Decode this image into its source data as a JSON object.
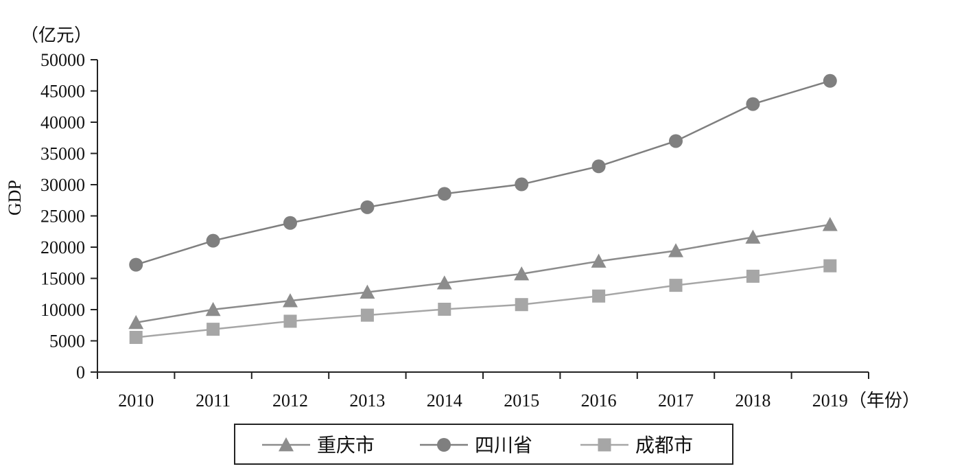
{
  "chart_data": {
    "type": "line",
    "title": "",
    "xlabel": "（年份）",
    "ylabel": "GDP",
    "yunit": "（亿元）",
    "categories": [
      "2010",
      "2011",
      "2012",
      "2013",
      "2014",
      "2015",
      "2016",
      "2017",
      "2018",
      "2019"
    ],
    "ylim": [
      0,
      50000
    ],
    "yticks": [
      0,
      5000,
      10000,
      15000,
      20000,
      25000,
      30000,
      35000,
      40000,
      45000,
      50000
    ],
    "grid": false,
    "legend_position": "bottom",
    "series": [
      {
        "name": "重庆市",
        "marker": "triangle",
        "color": "#8c8c8c",
        "values": [
          7926,
          10011,
          11410,
          12783,
          14263,
          15717,
          17741,
          19425,
          21589,
          23606
        ]
      },
      {
        "name": "四川省",
        "marker": "circle",
        "color": "#7f7f7f",
        "values": [
          17185,
          21027,
          23873,
          26392,
          28537,
          30053,
          32935,
          36980,
          42902,
          46616
        ]
      },
      {
        "name": "成都市",
        "marker": "square",
        "color": "#a6a6a6",
        "values": [
          5551,
          6855,
          8139,
          9109,
          10057,
          10801,
          12170,
          13889,
          15343,
          17013
        ]
      }
    ]
  }
}
